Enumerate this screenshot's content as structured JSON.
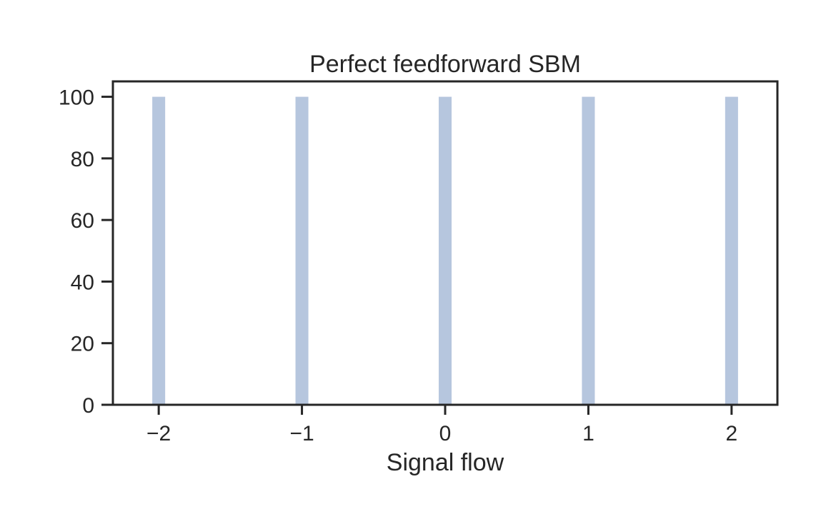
{
  "chart_data": {
    "type": "bar",
    "title": "Perfect feedforward SBM",
    "xlabel": "Signal flow",
    "ylabel": "",
    "x": [
      -2,
      -1,
      0,
      1,
      2
    ],
    "values": [
      100,
      100,
      100,
      100,
      100
    ],
    "bar_width": 0.09,
    "xlim": [
      -2.32,
      2.32
    ],
    "ylim": [
      0,
      105
    ],
    "xticks": [
      -2,
      -1,
      0,
      1,
      2
    ],
    "xtick_labels": [
      "−2",
      "−1",
      "0",
      "1",
      "2"
    ],
    "yticks": [
      0,
      20,
      40,
      60,
      80,
      100
    ],
    "ytick_labels": [
      "0",
      "20",
      "40",
      "60",
      "80",
      "100"
    ],
    "grid": false,
    "bar_color": "#b6c6de",
    "axis_color": "#262626"
  }
}
